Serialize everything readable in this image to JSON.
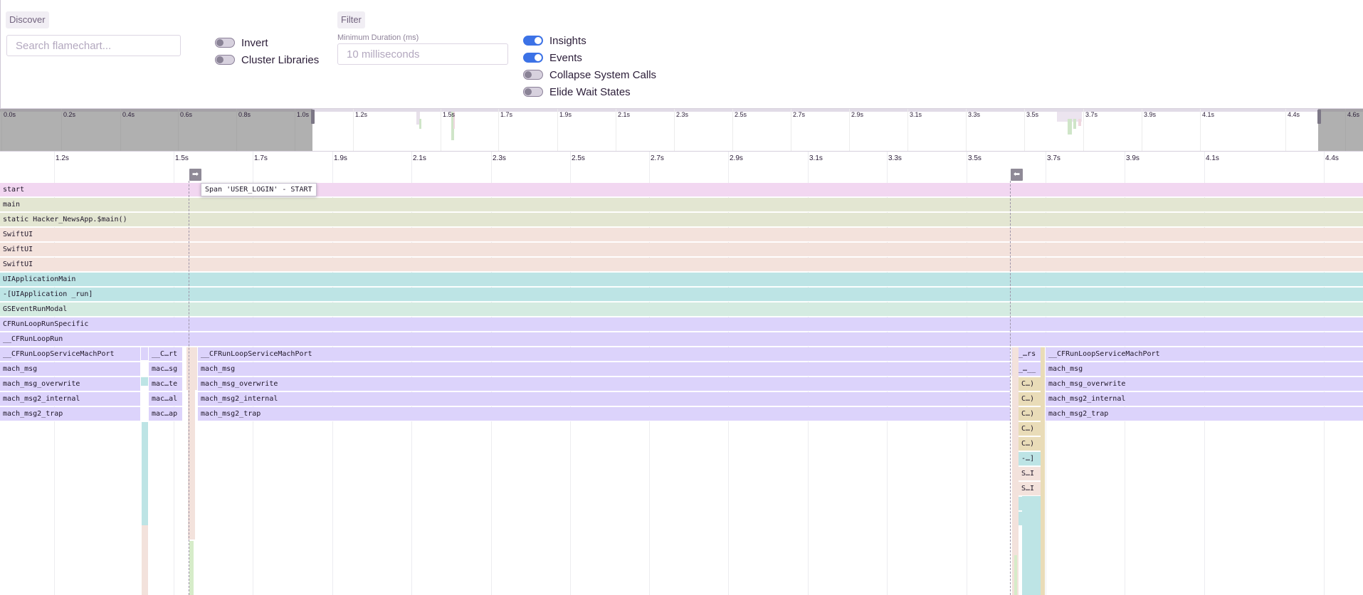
{
  "controls": {
    "discover_label": "Discover",
    "search_placeholder": "Search flamechart...",
    "invert_label": "Invert",
    "cluster_label": "Cluster Libraries",
    "filter_label": "Filter",
    "min_duration_label": "Minimum Duration (ms)",
    "min_duration_placeholder": "10 milliseconds",
    "insights_label": "Insights",
    "events_label": "Events",
    "collapse_label": "Collapse System Calls",
    "elide_label": "Elide Wait States"
  },
  "minimap": {
    "labels": [
      "0.0s",
      "0.2s",
      "0.4s",
      "0.6s",
      "0.8s",
      "1.0s",
      "1.2s",
      "1.5s",
      "1.7s",
      "1.9s",
      "2.1s",
      "2.3s",
      "2.5s",
      "2.7s",
      "2.9s",
      "3.1s",
      "3.3s",
      "3.5s",
      "3.7s",
      "3.9s",
      "4.1s",
      "4.4s",
      "4.6s"
    ]
  },
  "timeline": {
    "labels": [
      "1.2s",
      "1.5s",
      "1.7s",
      "1.9s",
      "2.1s",
      "2.3s",
      "2.5s",
      "2.7s",
      "2.9s",
      "3.1s",
      "3.3s",
      "3.5s",
      "3.7s",
      "3.9s",
      "4.1s",
      "4.4s"
    ],
    "start_marker_icon": "➡",
    "end_marker_icon": "⬅"
  },
  "tooltip": "Span 'USER_LOGIN' - START",
  "frames": {
    "start": "start",
    "main": "main",
    "static_main": "static Hacker_NewsApp.$main()",
    "swiftui_1": "SwiftUI",
    "swiftui_2": "SwiftUI",
    "swiftui_3": "SwiftUI",
    "uiapp_main": "UIApplicationMain",
    "uiapp_run": "-[UIApplication _run]",
    "gsevent": "GSEventRunModal",
    "cfrunloop_specific": "CFRunLoopRunSpecific",
    "cfrunloop_run": "__CFRunLoopRun",
    "left_block": [
      "__CFRunLoopServiceMachPort",
      "mach_msg",
      "mach_msg_overwrite",
      "mach_msg2_internal",
      "mach_msg2_trap"
    ],
    "mid_block": [
      "__C…rt",
      "mac…sg",
      "mac…te",
      "mac…al",
      "mac…ap"
    ],
    "center_block": [
      "__CFRunLoopServiceMachPort",
      "mach_msg",
      "mach_msg_overwrite",
      "mach_msg2_internal",
      "mach_msg2_trap"
    ],
    "right_narrow": [
      "__…rs",
      "__…__"
    ],
    "right_block": [
      "__CFRunLoopServiceMachPort",
      "mach_msg",
      "mach_msg_overwrite",
      "mach_msg2_internal",
      "mach_msg2_trap"
    ],
    "right_stack": [
      "C…)",
      "C…)",
      "C…)",
      "C…)",
      "C…)",
      "-…]",
      "S…I",
      "S…I",
      "-…",
      "-…"
    ]
  },
  "colors": {
    "start": "#f2d7f1",
    "main": "#e3e6d2",
    "swiftui": "#f3e2dc",
    "uiapp": "#bde4e5",
    "gsevent": "#d4ebe1",
    "cfrunloop": "#dcd3fb",
    "stack_tan": "#e9dcb8",
    "stack_cyan": "#bde4e5",
    "stack_pink": "#f3e2dc"
  }
}
